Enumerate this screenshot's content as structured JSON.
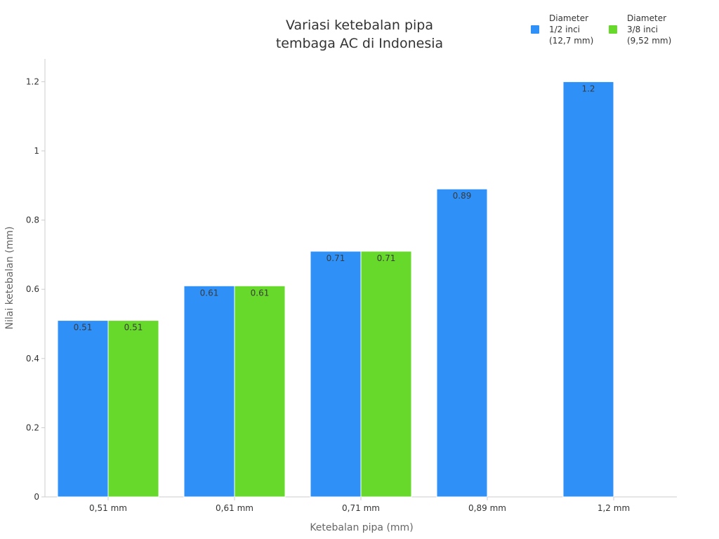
{
  "chart_data": {
    "type": "bar",
    "title_lines": [
      "Variasi ketebalan pipa",
      "tembaga AC di Indonesia"
    ],
    "xlabel": "Ketebalan pipa (mm)",
    "ylabel": "Nilai ketebalan (mm)",
    "categories": [
      "0,51 mm",
      "0,61 mm",
      "0,71 mm",
      "0,89 mm",
      "1,2 mm"
    ],
    "ylim": [
      0,
      1.2
    ],
    "yticks": [
      0,
      0.2,
      0.4,
      0.6,
      0.8,
      1,
      1.2
    ],
    "ytick_labels": [
      "0",
      "0.2",
      "0.4",
      "0.6",
      "0.8",
      "1",
      "1.2"
    ],
    "grid": false,
    "legend_position": "top-right",
    "series": [
      {
        "name_lines": [
          "Diameter",
          "1/2 inci",
          "(12,7 mm)"
        ],
        "color": "#2f91f8",
        "values": [
          0.51,
          0.61,
          0.71,
          0.89,
          1.2
        ],
        "labels": [
          "0.51",
          "0.61",
          "0.71",
          "0.89",
          "1.2"
        ]
      },
      {
        "name_lines": [
          "Diameter",
          "3/8 inci",
          "(9,52 mm)"
        ],
        "color": "#66d92a",
        "values": [
          0.51,
          0.61,
          0.71,
          null,
          null
        ],
        "labels": [
          "0.51",
          "0.61",
          "0.71",
          "",
          ""
        ]
      }
    ]
  }
}
